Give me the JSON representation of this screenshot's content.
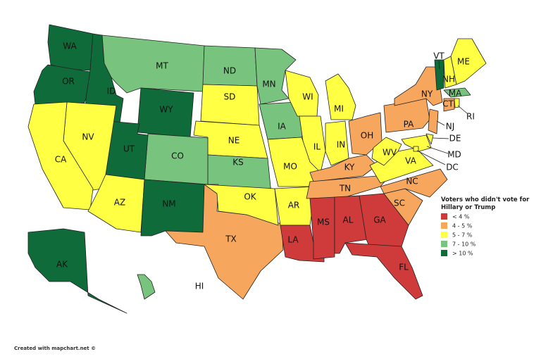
{
  "legend": {
    "title": [
      "Voters who didn't vote for",
      "Hillary or Trump"
    ],
    "items": [
      {
        "label": "< 4 %",
        "color": "#cf3a3a"
      },
      {
        "label": "4 - 5 %",
        "color": "#f6a65d"
      },
      {
        "label": "5 - 7 %",
        "color": "#ffff44"
      },
      {
        "label": "7 - 10 %",
        "color": "#78c47e"
      },
      {
        "label": "> 10 %",
        "color": "#0f6b39"
      }
    ]
  },
  "states": [
    {
      "label": "WA",
      "color": "#0f6b39"
    },
    {
      "label": "OR",
      "color": "#0f6b39"
    },
    {
      "label": "ID",
      "color": "#0f6b39"
    },
    {
      "label": "MT",
      "color": "#78c47e"
    },
    {
      "label": "WY",
      "color": "#0f6b39"
    },
    {
      "label": "ND",
      "color": "#78c47e"
    },
    {
      "label": "SD",
      "color": "#ffff44"
    },
    {
      "label": "NE",
      "color": "#ffff44"
    },
    {
      "label": "KS",
      "color": "#78c47e"
    },
    {
      "label": "CO",
      "color": "#78c47e"
    },
    {
      "label": "UT",
      "color": "#0f6b39"
    },
    {
      "label": "NV",
      "color": "#ffff44"
    },
    {
      "label": "CA",
      "color": "#ffff44"
    },
    {
      "label": "AZ",
      "color": "#ffff44"
    },
    {
      "label": "NM",
      "color": "#0f6b39"
    },
    {
      "label": "TX",
      "color": "#f6a65d"
    },
    {
      "label": "OK",
      "color": "#ffff44"
    },
    {
      "label": "MN",
      "color": "#78c47e"
    },
    {
      "label": "IA",
      "color": "#78c47e"
    },
    {
      "label": "MO",
      "color": "#ffff44"
    },
    {
      "label": "AR",
      "color": "#ffff44"
    },
    {
      "label": "LA",
      "color": "#cf3a3a"
    },
    {
      "label": "WI",
      "color": "#ffff44"
    },
    {
      "label": "IL",
      "color": "#ffff44"
    },
    {
      "label": "MI",
      "color": "#ffff44"
    },
    {
      "label": "IN",
      "color": "#ffff44"
    },
    {
      "label": "OH",
      "color": "#f6a65d"
    },
    {
      "label": "KY",
      "color": "#f6a65d"
    },
    {
      "label": "TN",
      "color": "#f6a65d"
    },
    {
      "label": "MS",
      "color": "#cf3a3a"
    },
    {
      "label": "AL",
      "color": "#cf3a3a"
    },
    {
      "label": "GA",
      "color": "#cf3a3a"
    },
    {
      "label": "FL",
      "color": "#cf3a3a"
    },
    {
      "label": "SC",
      "color": "#f6a65d"
    },
    {
      "label": "NC",
      "color": "#f6a65d"
    },
    {
      "label": "VA",
      "color": "#ffff44"
    },
    {
      "label": "WV",
      "color": "#ffff44"
    },
    {
      "label": "PA",
      "color": "#f6a65d"
    },
    {
      "label": "NY",
      "color": "#f6a65d"
    },
    {
      "label": "VT",
      "color": "#0f6b39"
    },
    {
      "label": "NH",
      "color": "#ffff44"
    },
    {
      "label": "ME",
      "color": "#ffff44"
    },
    {
      "label": "MA",
      "color": "#78c47e"
    },
    {
      "label": "CT",
      "color": "#f6a65d"
    },
    {
      "label": "RI",
      "color": "#ffff44"
    },
    {
      "label": "NJ",
      "color": "#f6a65d"
    },
    {
      "label": "DE",
      "color": "#ffff44"
    },
    {
      "label": "MD",
      "color": "#ffff44"
    },
    {
      "label": "DC",
      "color": "#ffff44"
    },
    {
      "label": "AK",
      "color": "#0f6b39"
    },
    {
      "label": "HI",
      "color": "#78c47e"
    }
  ],
  "footer": "Created with mapchart.net ©"
}
